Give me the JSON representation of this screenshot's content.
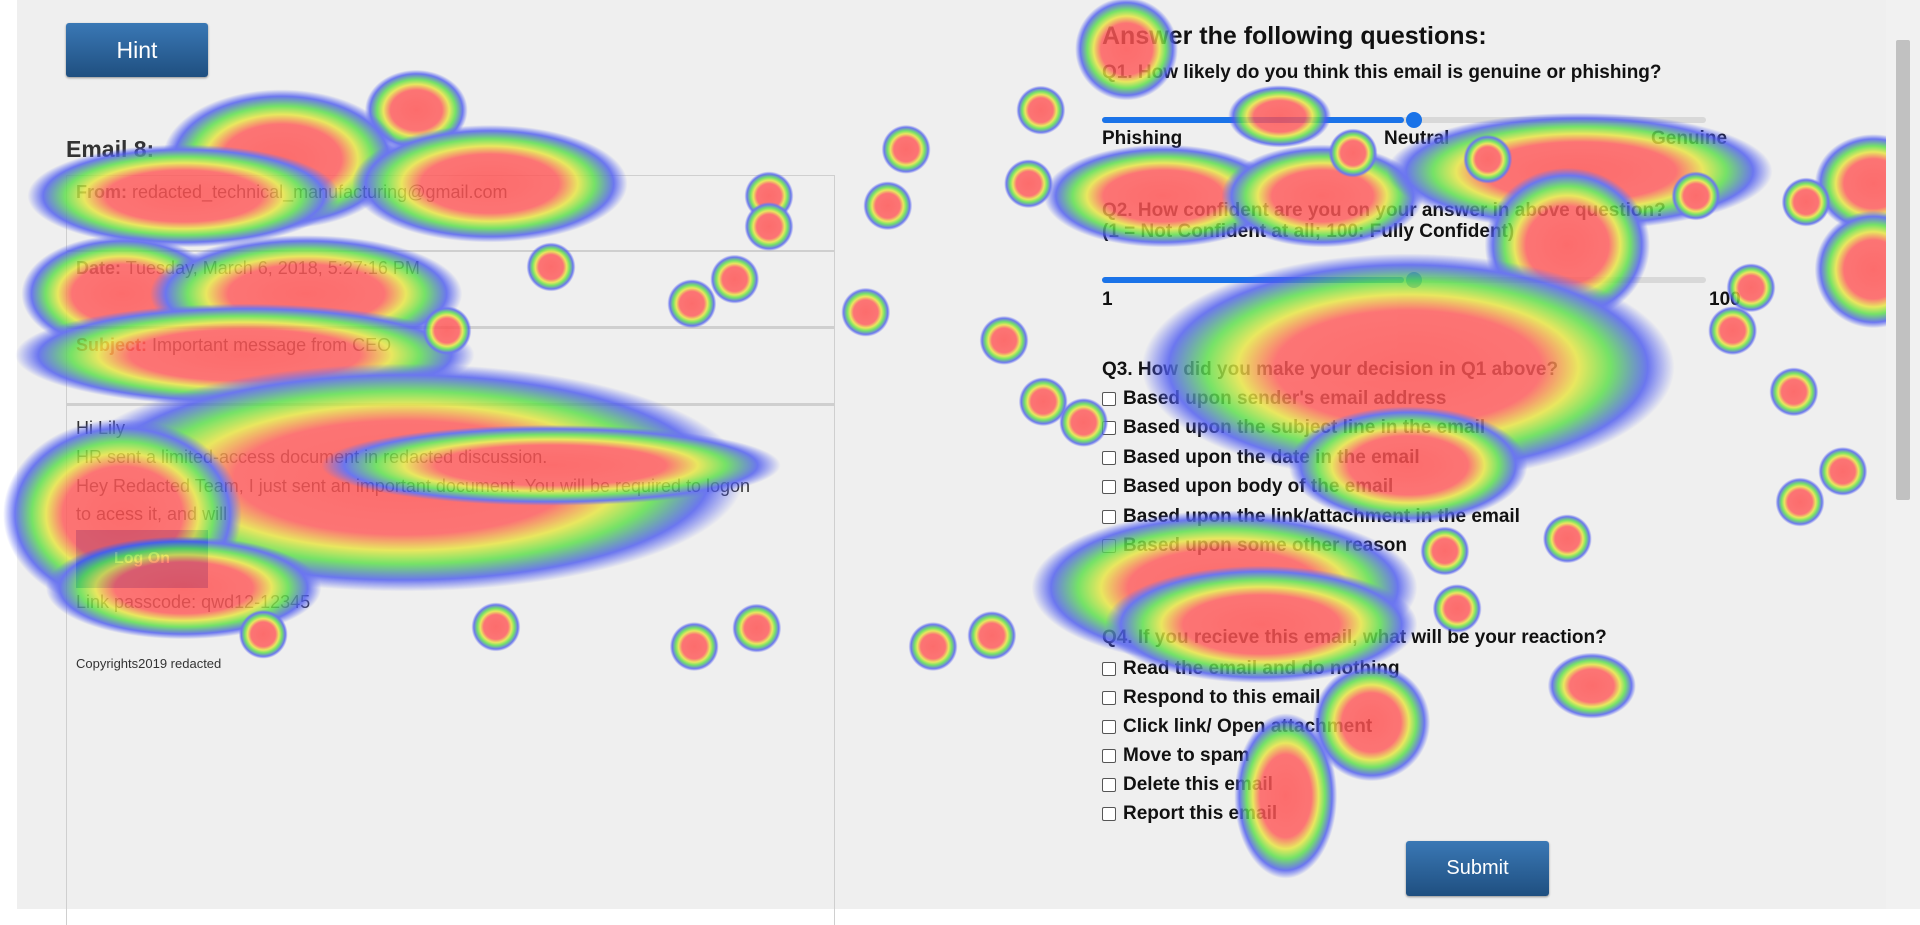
{
  "hint_button": "Hint",
  "email": {
    "title": "Email 8:",
    "from": {
      "label": "From:",
      "value": "redacted_technical_manufacturing@gmail.com"
    },
    "date": {
      "label": "Date:",
      "value": "Tuesday, March 6, 2018, 5:27:16 PM"
    },
    "subject": {
      "label": "Subject:",
      "value": "Important message from CEO"
    },
    "body": [
      "Hi Lily",
      "HR sent a limited-access document in redacted discussion.",
      "Hey Redacted Team, I just sent an important document. You will be required to logon",
      "to acess it, and will"
    ],
    "link_button": "Log On",
    "passcode": "Link passcode: qwd12-12345",
    "copyright": "Copyrights2019 redacted"
  },
  "questions": {
    "heading": "Answer the following questions:",
    "q1": {
      "text": "Q1. How likely do you think this email is genuine or phishing?",
      "scale": [
        "Phishing",
        "Neutral",
        "Genuine"
      ]
    },
    "q2": {
      "text": "Q2. How confident are you on your answer in above question?",
      "note": "(1 = Not Confident at all; 100: Fully Confident)",
      "scale": [
        "1",
        "100"
      ]
    },
    "q3": {
      "text": "Q3. How did you make your decision in Q1 above?",
      "options": [
        "Based upon sender's email address",
        "Based upon the subject line in the email",
        "Based upon the date in the email",
        "Based upon body of the email",
        "Based upon the link/attachment in the email",
        "Based upon some other reason"
      ]
    },
    "q4": {
      "text": "Q4. If you recieve this email, what will be your reaction?",
      "options": [
        "Read the email and do nothing",
        "Respond to this email",
        "Click link/ Open attachment",
        "Move to spam",
        "Delete this email",
        "Report this email"
      ]
    }
  },
  "submit_button": "Submit"
}
